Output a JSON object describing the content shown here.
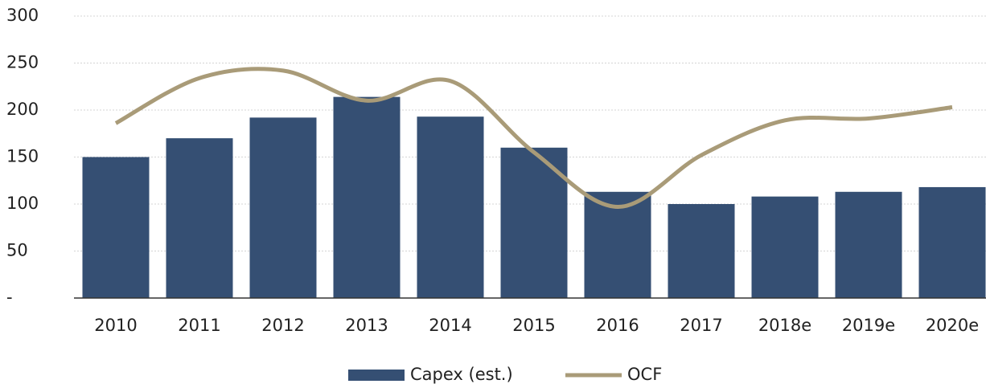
{
  "chart_data": {
    "type": "bar",
    "categories": [
      "2010",
      "2011",
      "2012",
      "2013",
      "2014",
      "2015",
      "2016",
      "2017",
      "2018e",
      "2019e",
      "2020e"
    ],
    "series": [
      {
        "name": "Capex (est.)",
        "type": "bar",
        "color": "#354f73",
        "values": [
          150,
          170,
          192,
          214,
          193,
          160,
          113,
          100,
          108,
          113,
          118
        ]
      },
      {
        "name": "OCF",
        "type": "line",
        "color": "#a99b78",
        "values": [
          186,
          234,
          242,
          210,
          231,
          155,
          97,
          152,
          189,
          191,
          203
        ]
      }
    ],
    "ylim": [
      0,
      300
    ],
    "yticks": [
      {
        "value": 0,
        "label": "-"
      },
      50,
      100,
      150,
      200,
      250,
      300
    ],
    "grid": true,
    "legend": "bottom"
  }
}
